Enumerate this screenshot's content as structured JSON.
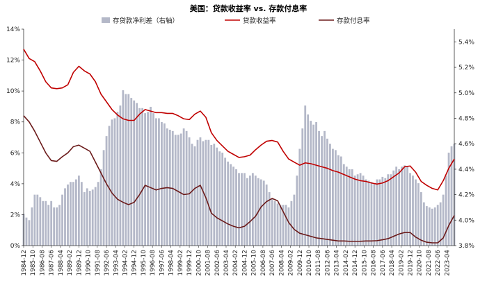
{
  "chart_data": {
    "type": "bar+line",
    "title": "美国：贷款收益率 vs. 存款付息率",
    "legend": [
      {
        "name": "存贷款净利差（右轴）",
        "type": "bar",
        "color": "#b4b8c8"
      },
      {
        "name": "贷款收益率",
        "type": "line",
        "color": "#c00000"
      },
      {
        "name": "存款付息率",
        "type": "line",
        "color": "#6b1a1a"
      }
    ],
    "x_ticks": [
      "1984-12",
      "1985-10",
      "1986-08",
      "1987-06",
      "1988-04",
      "1989-02",
      "1989-12",
      "1990-10",
      "1991-08",
      "1992-06",
      "1993-04",
      "1994-02",
      "1994-12",
      "1995-10",
      "1996-08",
      "1997-06",
      "1998-04",
      "1999-02",
      "1999-12",
      "2000-10",
      "2001-08",
      "2002-06",
      "2003-04",
      "2004-02",
      "2004-12",
      "2005-10",
      "2006-08",
      "2007-06",
      "2008-04",
      "2009-02",
      "2009-12",
      "2010-10",
      "2011-08",
      "2012-06",
      "2013-04",
      "2014-02",
      "2014-12",
      "2015-10",
      "2016-08",
      "2017-06",
      "2018-04",
      "2019-02",
      "2019-12",
      "2020-10",
      "2021-08",
      "2022-06",
      "2023-04"
    ],
    "y_left": {
      "min": 0,
      "max": 14,
      "ticks": [
        "0%",
        "2%",
        "4%",
        "6%",
        "8%",
        "10%",
        "12%",
        "14%"
      ]
    },
    "y_right": {
      "min": 3.8,
      "max": 5.5,
      "ticks": [
        "3.8%",
        "4.0%",
        "4.2%",
        "4.4%",
        "4.6%",
        "4.8%",
        "5.0%",
        "5.2%",
        "5.4%"
      ]
    },
    "series": [
      {
        "name": "存贷款净利差（右轴）",
        "axis": "right",
        "quarter_start": "1984Q4",
        "values": [
          4.05,
          4.02,
          4.0,
          4.1,
          4.2,
          4.2,
          4.18,
          4.15,
          4.15,
          4.12,
          4.15,
          4.1,
          4.1,
          4.12,
          4.2,
          4.25,
          4.28,
          4.3,
          4.3,
          4.32,
          4.35,
          4.3,
          4.22,
          4.25,
          4.23,
          4.24,
          4.26,
          4.3,
          4.4,
          4.55,
          4.66,
          4.74,
          4.79,
          4.8,
          4.85,
          4.9,
          5.02,
          4.99,
          4.99,
          4.96,
          4.94,
          4.92,
          4.88,
          4.88,
          4.84,
          4.85,
          4.89,
          4.84,
          4.8,
          4.8,
          4.77,
          4.76,
          4.72,
          4.71,
          4.7,
          4.67,
          4.67,
          4.68,
          4.72,
          4.7,
          4.65,
          4.6,
          4.58,
          4.63,
          4.65,
          4.62,
          4.63,
          4.63,
          4.59,
          4.6,
          4.57,
          4.54,
          4.53,
          4.49,
          4.46,
          4.44,
          4.42,
          4.4,
          4.37,
          4.37,
          4.37,
          4.33,
          4.35,
          4.37,
          4.35,
          4.33,
          4.32,
          4.31,
          4.28,
          4.22,
          4.17,
          4.15,
          4.13,
          4.12,
          4.12,
          4.12,
          4.1,
          4.15,
          4.2,
          4.35,
          4.56,
          4.72,
          4.9,
          4.83,
          4.78,
          4.75,
          4.77,
          4.7,
          4.66,
          4.7,
          4.64,
          4.6,
          4.56,
          4.55,
          4.51,
          4.5,
          4.44,
          4.42,
          4.4,
          4.4,
          4.35,
          4.36,
          4.37,
          4.35,
          4.32,
          4.31,
          4.3,
          4.29,
          4.32,
          4.32,
          4.34,
          4.33,
          4.36,
          4.36,
          4.39,
          4.42,
          4.4,
          4.42,
          4.43,
          4.42,
          4.37,
          4.35,
          4.32,
          4.29,
          4.22,
          4.14,
          4.11,
          4.1,
          4.09,
          4.1,
          4.12,
          4.14,
          4.2,
          4.35,
          4.53,
          4.58,
          4.6
        ]
      },
      {
        "name": "贷款收益率",
        "axis": "left",
        "points": [
          [
            "1984-12",
            12.7
          ],
          [
            "1985-06",
            12.1
          ],
          [
            "1985-12",
            11.9
          ],
          [
            "1986-06",
            11.3
          ],
          [
            "1986-12",
            10.6
          ],
          [
            "1987-06",
            10.2
          ],
          [
            "1987-12",
            10.15
          ],
          [
            "1988-06",
            10.2
          ],
          [
            "1988-12",
            10.4
          ],
          [
            "1989-06",
            11.2
          ],
          [
            "1989-12",
            11.6
          ],
          [
            "1990-06",
            11.3
          ],
          [
            "1990-12",
            11.1
          ],
          [
            "1991-06",
            10.6
          ],
          [
            "1991-12",
            9.8
          ],
          [
            "1992-06",
            9.3
          ],
          [
            "1992-12",
            8.8
          ],
          [
            "1993-06",
            8.45
          ],
          [
            "1993-12",
            8.2
          ],
          [
            "1994-06",
            8.1
          ],
          [
            "1994-12",
            8.1
          ],
          [
            "1995-06",
            8.5
          ],
          [
            "1995-12",
            8.8
          ],
          [
            "1996-06",
            8.7
          ],
          [
            "1996-12",
            8.6
          ],
          [
            "1997-06",
            8.6
          ],
          [
            "1997-12",
            8.55
          ],
          [
            "1998-06",
            8.55
          ],
          [
            "1998-12",
            8.4
          ],
          [
            "1999-06",
            8.2
          ],
          [
            "1999-12",
            8.15
          ],
          [
            "2000-06",
            8.5
          ],
          [
            "2000-12",
            8.7
          ],
          [
            "2001-06",
            8.3
          ],
          [
            "2001-12",
            7.3
          ],
          [
            "2002-06",
            6.8
          ],
          [
            "2002-12",
            6.45
          ],
          [
            "2003-06",
            6.1
          ],
          [
            "2003-12",
            5.9
          ],
          [
            "2004-06",
            5.7
          ],
          [
            "2004-12",
            5.75
          ],
          [
            "2005-06",
            5.85
          ],
          [
            "2005-12",
            6.2
          ],
          [
            "2006-06",
            6.5
          ],
          [
            "2006-12",
            6.75
          ],
          [
            "2007-06",
            6.8
          ],
          [
            "2007-12",
            6.7
          ],
          [
            "2008-06",
            6.1
          ],
          [
            "2008-12",
            5.6
          ],
          [
            "2009-06",
            5.4
          ],
          [
            "2009-12",
            5.2
          ],
          [
            "2010-06",
            5.35
          ],
          [
            "2010-12",
            5.3
          ],
          [
            "2011-06",
            5.2
          ],
          [
            "2011-12",
            5.1
          ],
          [
            "2012-06",
            5.0
          ],
          [
            "2012-12",
            4.85
          ],
          [
            "2013-06",
            4.75
          ],
          [
            "2013-12",
            4.6
          ],
          [
            "2014-06",
            4.45
          ],
          [
            "2014-12",
            4.3
          ],
          [
            "2015-06",
            4.2
          ],
          [
            "2015-12",
            4.15
          ],
          [
            "2016-06",
            4.05
          ],
          [
            "2016-12",
            3.98
          ],
          [
            "2017-06",
            4.05
          ],
          [
            "2017-12",
            4.2
          ],
          [
            "2018-06",
            4.45
          ],
          [
            "2018-12",
            4.7
          ],
          [
            "2019-06",
            5.1
          ],
          [
            "2019-12",
            5.15
          ],
          [
            "2020-06",
            4.75
          ],
          [
            "2020-12",
            4.15
          ],
          [
            "2021-06",
            3.9
          ],
          [
            "2021-12",
            3.7
          ],
          [
            "2022-06",
            3.6
          ],
          [
            "2022-12",
            4.2
          ],
          [
            "2023-06",
            5.0
          ],
          [
            "2023-12",
            5.6
          ]
        ]
      },
      {
        "name": "存款付息率",
        "axis": "left",
        "points": [
          [
            "1984-12",
            8.4
          ],
          [
            "1985-06",
            8.0
          ],
          [
            "1985-12",
            7.4
          ],
          [
            "1986-06",
            6.7
          ],
          [
            "1986-12",
            6.0
          ],
          [
            "1987-06",
            5.5
          ],
          [
            "1987-12",
            5.45
          ],
          [
            "1988-06",
            5.75
          ],
          [
            "1988-12",
            6.0
          ],
          [
            "1989-06",
            6.4
          ],
          [
            "1989-12",
            6.5
          ],
          [
            "1990-06",
            6.3
          ],
          [
            "1990-12",
            6.1
          ],
          [
            "1991-06",
            5.4
          ],
          [
            "1991-12",
            4.7
          ],
          [
            "1992-06",
            4.0
          ],
          [
            "1992-12",
            3.4
          ],
          [
            "1993-06",
            3.0
          ],
          [
            "1993-12",
            2.8
          ],
          [
            "1994-06",
            2.65
          ],
          [
            "1994-12",
            2.8
          ],
          [
            "1995-06",
            3.3
          ],
          [
            "1995-12",
            3.9
          ],
          [
            "1996-06",
            3.75
          ],
          [
            "1996-12",
            3.6
          ],
          [
            "1997-06",
            3.7
          ],
          [
            "1997-12",
            3.75
          ],
          [
            "1998-06",
            3.7
          ],
          [
            "1998-12",
            3.5
          ],
          [
            "1999-06",
            3.3
          ],
          [
            "1999-12",
            3.35
          ],
          [
            "2000-06",
            3.7
          ],
          [
            "2000-12",
            3.9
          ],
          [
            "2001-06",
            3.1
          ],
          [
            "2001-12",
            2.1
          ],
          [
            "2002-06",
            1.8
          ],
          [
            "2002-12",
            1.6
          ],
          [
            "2003-06",
            1.4
          ],
          [
            "2003-12",
            1.25
          ],
          [
            "2004-06",
            1.15
          ],
          [
            "2004-12",
            1.25
          ],
          [
            "2005-06",
            1.55
          ],
          [
            "2005-12",
            1.9
          ],
          [
            "2006-06",
            2.5
          ],
          [
            "2006-12",
            2.85
          ],
          [
            "2007-06",
            3.05
          ],
          [
            "2007-12",
            2.9
          ],
          [
            "2008-06",
            2.2
          ],
          [
            "2008-12",
            1.5
          ],
          [
            "2009-06",
            1.05
          ],
          [
            "2009-12",
            0.8
          ],
          [
            "2010-06",
            0.7
          ],
          [
            "2010-12",
            0.6
          ],
          [
            "2011-06",
            0.5
          ],
          [
            "2011-12",
            0.45
          ],
          [
            "2012-06",
            0.4
          ],
          [
            "2012-12",
            0.35
          ],
          [
            "2013-06",
            0.3
          ],
          [
            "2013-12",
            0.3
          ],
          [
            "2014-06",
            0.28
          ],
          [
            "2014-12",
            0.28
          ],
          [
            "2015-06",
            0.28
          ],
          [
            "2015-12",
            0.3
          ],
          [
            "2016-06",
            0.3
          ],
          [
            "2016-12",
            0.32
          ],
          [
            "2017-06",
            0.38
          ],
          [
            "2017-12",
            0.45
          ],
          [
            "2018-06",
            0.6
          ],
          [
            "2018-12",
            0.75
          ],
          [
            "2019-06",
            0.85
          ],
          [
            "2019-12",
            0.85
          ],
          [
            "2020-06",
            0.55
          ],
          [
            "2020-12",
            0.35
          ],
          [
            "2021-06",
            0.22
          ],
          [
            "2021-12",
            0.18
          ],
          [
            "2022-06",
            0.18
          ],
          [
            "2022-12",
            0.5
          ],
          [
            "2023-06",
            1.3
          ],
          [
            "2023-12",
            1.95
          ]
        ]
      }
    ]
  }
}
